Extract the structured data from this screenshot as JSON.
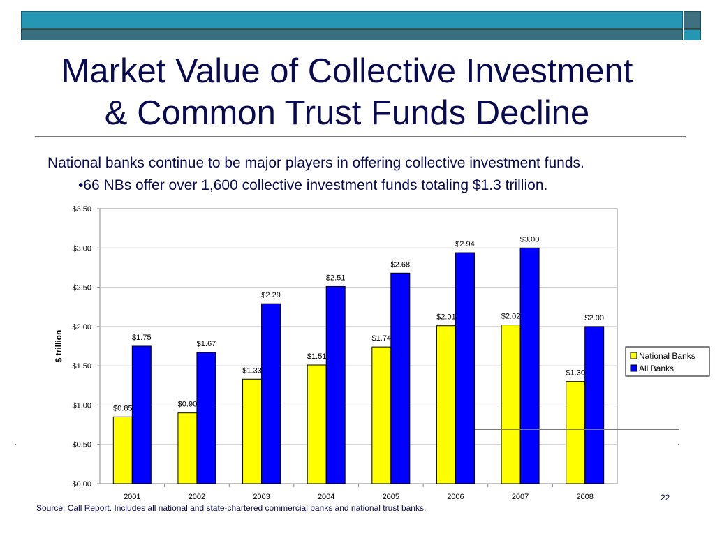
{
  "slide": {
    "title_line1": "Market Value of Collective Investment",
    "title_line2": "& Common Trust Funds Decline",
    "subtitle1": "National banks continue to be major players in offering collective investment funds.",
    "subtitle2": "•66 NBs offer over 1,600 collective investment funds totaling $1.3 trillion.",
    "source": "Source:  Call Report.  Includes all national and state-chartered commercial banks and national trust banks.",
    "page_number": "22"
  },
  "colors": {
    "national": "#ffff00",
    "all": "#0000ff",
    "title": "#0a0a50"
  },
  "chart_data": {
    "type": "bar",
    "categories": [
      "2001",
      "2002",
      "2003",
      "2004",
      "2005",
      "2006",
      "2007",
      "2008"
    ],
    "series": [
      {
        "name": "National Banks",
        "values": [
          0.85,
          0.9,
          1.33,
          1.51,
          1.74,
          2.01,
          2.02,
          1.3
        ],
        "labels": [
          "$0.85",
          "$0.90",
          "$1.33",
          "$1.51",
          "$1.74",
          "$2.01",
          "$2.02",
          "$1.30"
        ]
      },
      {
        "name": "All Banks",
        "values": [
          1.75,
          1.67,
          2.29,
          2.51,
          2.68,
          2.94,
          3.0,
          2.0
        ],
        "labels": [
          "$1.75",
          "$1.67",
          "$2.29",
          "$2.51",
          "$2.68",
          "$2.94",
          "$3.00",
          "$2.00"
        ]
      }
    ],
    "ylabel": "$ trillion",
    "ylim": [
      0,
      3.5
    ],
    "yticks": [
      0,
      0.5,
      1.0,
      1.5,
      2.0,
      2.5,
      3.0,
      3.5
    ],
    "ytick_labels": [
      "$0.00",
      "$0.50",
      "$1.00",
      "$1.50",
      "$2.00",
      "$2.50",
      "$3.00",
      "$3.50"
    ],
    "grid": true,
    "legend_position": "right"
  }
}
